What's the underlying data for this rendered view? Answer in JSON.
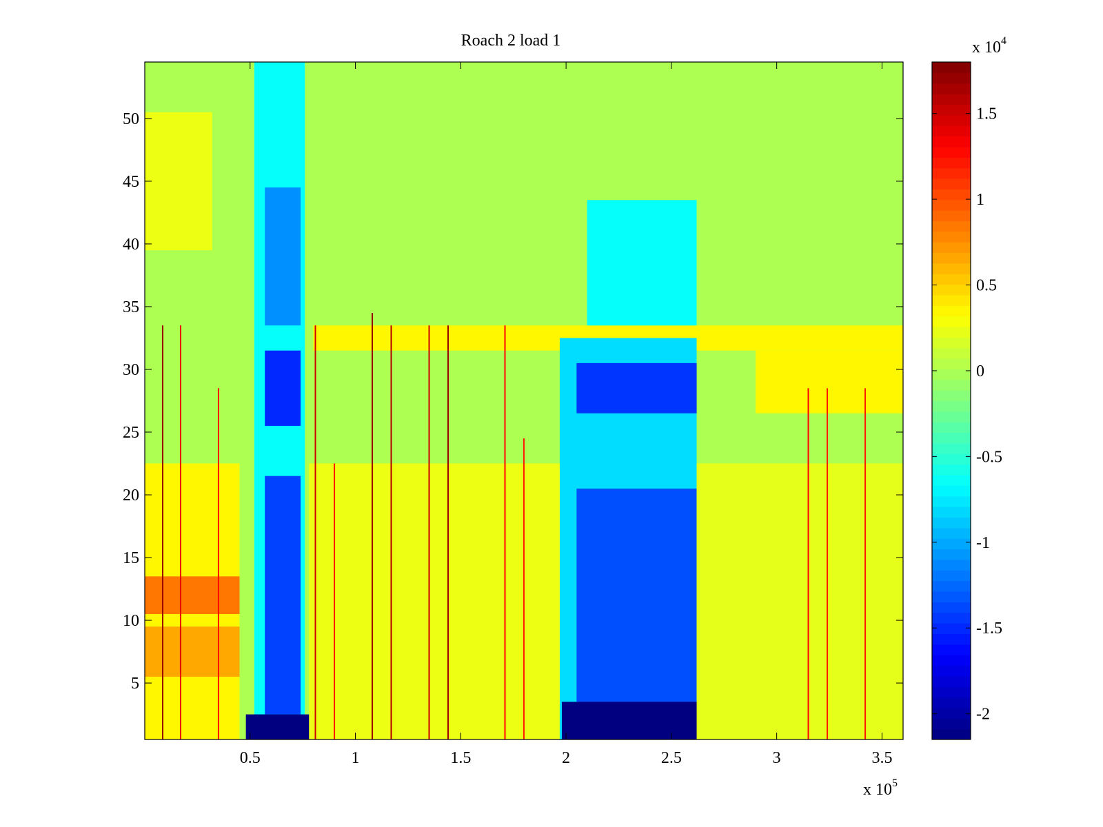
{
  "chart_data": {
    "type": "heatmap",
    "title": "Roach 2 load 1",
    "xlabel": "",
    "ylabel": "",
    "x_axis": {
      "range": [
        0,
        360000
      ],
      "ticks": [
        50000,
        100000,
        150000,
        200000,
        250000,
        300000,
        350000
      ],
      "tick_labels": [
        "0.5",
        "1",
        "1.5",
        "2",
        "2.5",
        "3",
        "3.5"
      ],
      "multiplier_label": "x 10",
      "multiplier_exponent": "5"
    },
    "y_axis": {
      "range": [
        0.5,
        54.5
      ],
      "ticks": [
        5,
        10,
        15,
        20,
        25,
        30,
        35,
        40,
        45,
        50
      ],
      "tick_labels": [
        "5",
        "10",
        "15",
        "20",
        "25",
        "30",
        "35",
        "40",
        "45",
        "50"
      ]
    },
    "colorbar": {
      "colormap": "jet",
      "range": [
        -21500,
        18000
      ],
      "ticks": [
        -20000,
        -15000,
        -10000,
        -5000,
        0,
        5000,
        10000,
        15000
      ],
      "tick_labels": [
        "-2",
        "-1.5",
        "-1",
        "-0.5",
        "0",
        "0.5",
        "1",
        "1.5"
      ],
      "multiplier_label": "x 10",
      "multiplier_exponent": "4"
    },
    "rows": 54,
    "baseline_value": 0,
    "regions": [
      {
        "x_range": [
          0,
          45000
        ],
        "y_range": [
          1,
          22
        ],
        "value": 3500
      },
      {
        "x_range": [
          0,
          45000
        ],
        "y_range": [
          11,
          13
        ],
        "value": 8500
      },
      {
        "x_range": [
          0,
          45000
        ],
        "y_range": [
          6,
          9
        ],
        "value": 6500
      },
      {
        "x_range": [
          0,
          32000
        ],
        "y_range": [
          40,
          50
        ],
        "value": 2500
      },
      {
        "x_range": [
          52000,
          76000
        ],
        "y_range": [
          1,
          54
        ],
        "value": -6500
      },
      {
        "x_range": [
          57000,
          74000
        ],
        "y_range": [
          3,
          21
        ],
        "value": -14000
      },
      {
        "x_range": [
          57000,
          74000
        ],
        "y_range": [
          26,
          31
        ],
        "value": -15000
      },
      {
        "x_range": [
          57000,
          74000
        ],
        "y_range": [
          34,
          44
        ],
        "value": -11000
      },
      {
        "x_range": [
          48000,
          78000
        ],
        "y_range": [
          1,
          2
        ],
        "value": -21500
      },
      {
        "x_range": [
          78000,
          200000
        ],
        "y_range": [
          1,
          22
        ],
        "value": 2500
      },
      {
        "x_range": [
          80000,
          360000
        ],
        "y_range": [
          32,
          33
        ],
        "value": 3500
      },
      {
        "x_range": [
          197000,
          262000
        ],
        "y_range": [
          1,
          32
        ],
        "value": -8000
      },
      {
        "x_range": [
          205000,
          262000
        ],
        "y_range": [
          3,
          20
        ],
        "value": -13500
      },
      {
        "x_range": [
          205000,
          262000
        ],
        "y_range": [
          27,
          30
        ],
        "value": -14500
      },
      {
        "x_range": [
          210000,
          262000
        ],
        "y_range": [
          34,
          43
        ],
        "value": -6500
      },
      {
        "x_range": [
          198000,
          266000
        ],
        "y_range": [
          1,
          3
        ],
        "value": -21500
      },
      {
        "x_range": [
          262000,
          360000
        ],
        "y_range": [
          1,
          22
        ],
        "value": 2200
      },
      {
        "x_range": [
          290000,
          360000
        ],
        "y_range": [
          27,
          31
        ],
        "value": 3500
      }
    ],
    "spikes": [
      {
        "x": 8500,
        "y_range": [
          1,
          33
        ],
        "value": 17000
      },
      {
        "x": 17000,
        "y_range": [
          1,
          33
        ],
        "value": 14000
      },
      {
        "x": 35000,
        "y_range": [
          1,
          28
        ],
        "value": 13000
      },
      {
        "x": 81000,
        "y_range": [
          1,
          33
        ],
        "value": 15000
      },
      {
        "x": 90000,
        "y_range": [
          1,
          22
        ],
        "value": 12000
      },
      {
        "x": 108000,
        "y_range": [
          1,
          34
        ],
        "value": 17000
      },
      {
        "x": 117000,
        "y_range": [
          1,
          33
        ],
        "value": 16000
      },
      {
        "x": 135000,
        "y_range": [
          1,
          33
        ],
        "value": 15000
      },
      {
        "x": 144000,
        "y_range": [
          1,
          33
        ],
        "value": 17000
      },
      {
        "x": 171000,
        "y_range": [
          1,
          33
        ],
        "value": 13000
      },
      {
        "x": 180000,
        "y_range": [
          1,
          24
        ],
        "value": 12000
      },
      {
        "x": 315000,
        "y_range": [
          1,
          28
        ],
        "value": 13000
      },
      {
        "x": 324000,
        "y_range": [
          1,
          28
        ],
        "value": 12000
      },
      {
        "x": 342000,
        "y_range": [
          1,
          28
        ],
        "value": 12000
      }
    ]
  }
}
